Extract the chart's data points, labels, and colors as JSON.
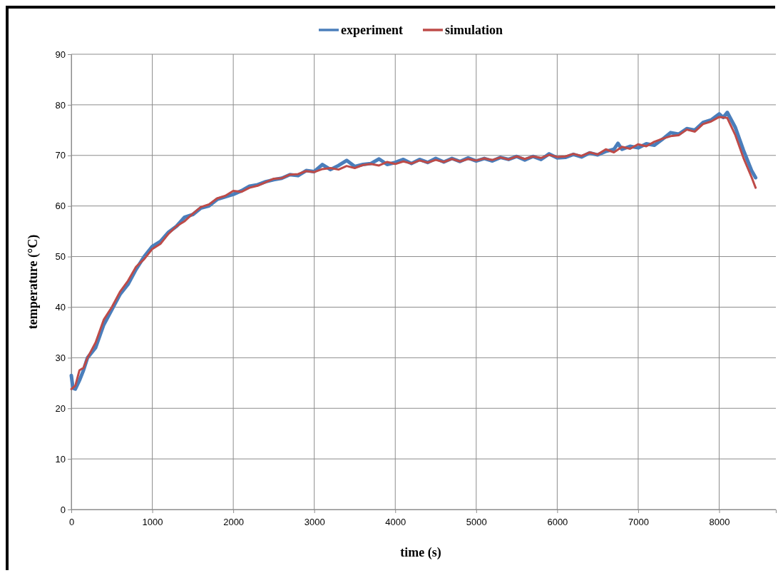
{
  "chart_data": {
    "type": "line",
    "xlabel": "time (s)",
    "ylabel": "temperature (°C)",
    "xlim": [
      0,
      8700
    ],
    "xticks": [
      0,
      1000,
      2000,
      3000,
      4000,
      5000,
      6000,
      7000,
      8000
    ],
    "ylim": [
      0,
      90
    ],
    "yticks": [
      0,
      10,
      20,
      30,
      40,
      50,
      60,
      70,
      80,
      90
    ],
    "grid": true,
    "legend": "top",
    "marker": "none",
    "line_style": "solid",
    "series": [
      {
        "name": "experiment",
        "color": "#4a7ebb",
        "x": [
          0,
          20,
          50,
          100,
          150,
          200,
          300,
          400,
          500,
          600,
          700,
          800,
          900,
          1000,
          1100,
          1200,
          1300,
          1400,
          1500,
          1600,
          1700,
          1800,
          1900,
          2000,
          2100,
          2200,
          2300,
          2400,
          2500,
          2600,
          2700,
          2800,
          2900,
          3000,
          3100,
          3200,
          3300,
          3400,
          3500,
          3600,
          3700,
          3800,
          3900,
          4000,
          4100,
          4200,
          4300,
          4400,
          4500,
          4600,
          4700,
          4800,
          4900,
          5000,
          5100,
          5200,
          5300,
          5400,
          5500,
          5600,
          5700,
          5800,
          5900,
          6000,
          6100,
          6200,
          6300,
          6400,
          6500,
          6600,
          6700,
          6750,
          6800,
          6900,
          7000,
          7100,
          7200,
          7300,
          7400,
          7500,
          7600,
          7700,
          7800,
          7900,
          8000,
          8050,
          8100,
          8200,
          8300,
          8400,
          8450
        ],
        "values": [
          26.5,
          24,
          23.8,
          25.5,
          27.5,
          30,
          32,
          36.5,
          39.5,
          42.5,
          44.5,
          47.5,
          50,
          52,
          53,
          54.8,
          56,
          57.8,
          58.3,
          59.6,
          60,
          61.3,
          61.8,
          62.3,
          63,
          63.9,
          64.2,
          64.8,
          65.2,
          65.5,
          66.2,
          66,
          67,
          66.8,
          68.2,
          67.2,
          68,
          69,
          67.8,
          68.2,
          68.4,
          69.3,
          68.2,
          68.6,
          69.2,
          68.4,
          69.2,
          68.6,
          69.4,
          68.7,
          69.4,
          68.8,
          69.5,
          68.9,
          69.4,
          68.9,
          69.6,
          69.2,
          69.8,
          69.1,
          69.8,
          69.2,
          70.3,
          69.5,
          69.6,
          70.2,
          69.7,
          70.5,
          70.1,
          70.8,
          71.2,
          72.4,
          71.2,
          71.8,
          71.5,
          72.3,
          72,
          73.2,
          74.5,
          74.2,
          75.3,
          75,
          76.5,
          77,
          78.2,
          77.5,
          78.5,
          75.5,
          71,
          67,
          65.6
        ]
      },
      {
        "name": "simulation",
        "color": "#be4b48",
        "x": [
          0,
          50,
          100,
          150,
          200,
          300,
          400,
          500,
          600,
          700,
          800,
          900,
          1000,
          1100,
          1200,
          1300,
          1400,
          1500,
          1600,
          1700,
          1800,
          1900,
          2000,
          2100,
          2200,
          2300,
          2400,
          2500,
          2600,
          2700,
          2800,
          2900,
          3000,
          3100,
          3200,
          3300,
          3400,
          3500,
          3600,
          3700,
          3800,
          3900,
          4000,
          4100,
          4200,
          4300,
          4400,
          4500,
          4600,
          4700,
          4800,
          4900,
          5000,
          5100,
          5200,
          5300,
          5400,
          5500,
          5600,
          5700,
          5800,
          5900,
          6000,
          6100,
          6200,
          6300,
          6400,
          6500,
          6600,
          6700,
          6800,
          6900,
          7000,
          7100,
          7200,
          7300,
          7400,
          7500,
          7600,
          7700,
          7800,
          7900,
          8000,
          8100,
          8200,
          8300,
          8400,
          8450
        ],
        "values": [
          23.8,
          24.5,
          27.5,
          28,
          30,
          33,
          37.5,
          40,
          43,
          45.2,
          48,
          49.5,
          51.5,
          52.5,
          54.5,
          56,
          57,
          58.5,
          59.8,
          60.3,
          61.5,
          62,
          63,
          62.8,
          63.6,
          64,
          64.7,
          65.4,
          65.5,
          66.2,
          66.3,
          66.9,
          66.7,
          67.3,
          67.5,
          67.2,
          67.9,
          67.5,
          68.1,
          68.3,
          68,
          68.7,
          68.3,
          68.8,
          68.4,
          69,
          68.6,
          69.1,
          68.7,
          69.3,
          68.8,
          69.3,
          69,
          69.4,
          69.1,
          69.6,
          69.2,
          69.8,
          69.3,
          69.8,
          69.5,
          70.1,
          69.7,
          69.8,
          70.3,
          69.9,
          70.6,
          70.2,
          71.2,
          70.6,
          71.7,
          71.3,
          72.2,
          71.8,
          72.7,
          73.3,
          73.8,
          74,
          75.1,
          74.7,
          76.2,
          76.7,
          77.6,
          77.4,
          74,
          69.5,
          65.7,
          63.6
        ]
      }
    ]
  }
}
